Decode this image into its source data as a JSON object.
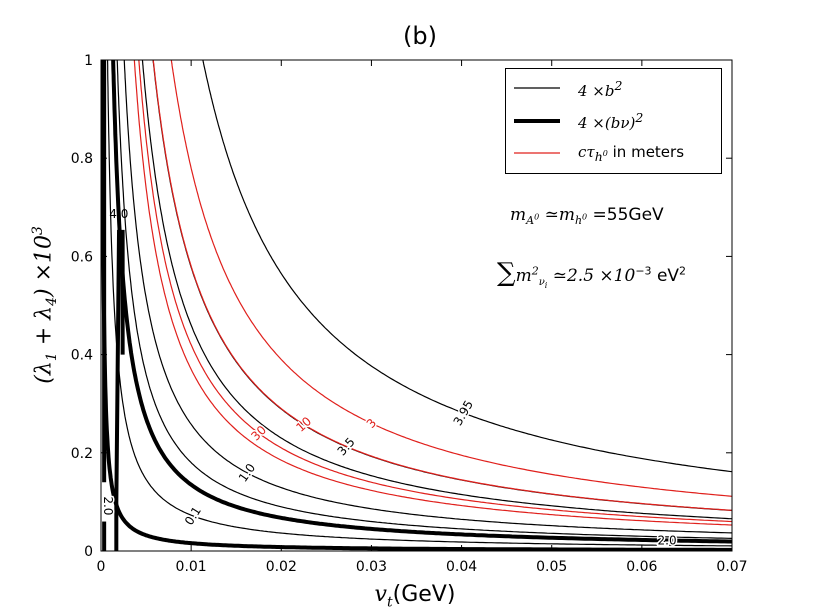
{
  "chart_data": {
    "type": "line",
    "title": "(b)",
    "xlabel": "v_t (GeV)",
    "ylabel": "(λ1 + λ4) ×10^3",
    "xlim": [
      0,
      0.07
    ],
    "ylim": [
      0,
      1
    ],
    "x_ticks": [
      "0",
      "0.01",
      "0.02",
      "0.03",
      "0.04",
      "0.05",
      "0.06",
      "0.07"
    ],
    "x_tick_values": [
      0,
      0.01,
      0.02,
      0.03,
      0.04,
      0.05,
      0.06,
      0.07
    ],
    "y_ticks": [
      "0",
      "0.2",
      "0.4",
      "0.6",
      "0.8",
      "1"
    ],
    "y_tick_values": [
      0,
      0.2,
      0.4,
      0.6,
      0.8,
      1
    ],
    "legend": {
      "position": "top-right",
      "entries": [
        {
          "label": "4 ×b²",
          "style": "thin-black"
        },
        {
          "label": "4 ×(bν)²",
          "style": "thick-black"
        },
        {
          "label": "cτ_h0 in meters",
          "style": "red"
        }
      ],
      "legend_red_suffix": "in meters"
    },
    "annotations": {
      "mass_line": "m_A0 ≃ m_h0 = 55GeV",
      "mass_value": "=55GeV",
      "neutrino_line": "∑ m²_νi ≃ 2.5 ×10⁻³ eV²",
      "neutrino_value": "≃2.5 ×10",
      "neutrino_exp": "−3",
      "neutrino_unit": "eV"
    },
    "series": [
      {
        "name": "4 ×b² = 0.1",
        "style": "thin-black",
        "label": "0.1",
        "k": 0.00073
      },
      {
        "name": "4 ×b² = 1.0",
        "style": "thin-black",
        "label": "1.0",
        "k": 0.00258
      },
      {
        "name": "4 ×b² = 3.5",
        "style": "thin-black",
        "label": "3.5",
        "k": 0.00578
      },
      {
        "name": "4 ×b² = 3.95",
        "style": "thin-black",
        "label": "3.95",
        "k": 0.0113
      },
      {
        "name": "4 ×b² extra",
        "style": "thin-black",
        "label": "",
        "k": 0.0018
      },
      {
        "name": "4 ×b² extra2",
        "style": "thin-black",
        "label": "",
        "k": 0.0046
      },
      {
        "name": "cτ = 3",
        "style": "red",
        "label": "3",
        "k": 0.0078
      },
      {
        "name": "cτ = 10",
        "style": "red",
        "label": "10",
        "k": 0.0058
      },
      {
        "name": "cτ = 30",
        "style": "red",
        "label": "30",
        "k": 0.0042
      },
      {
        "name": "cτ extra",
        "style": "red",
        "label": "",
        "k": 0.0037
      },
      {
        "name": "4 ×(bν)² = 2.0 outer",
        "style": "thick-black",
        "label": "2.0",
        "k": 0.00135
      },
      {
        "name": "4 ×(bν)² = 2.0 inner",
        "style": "thick-black",
        "label": "",
        "k": 0.00016
      }
    ],
    "peak": {
      "label": "4.0",
      "x": 0.0022,
      "y": 0.65
    },
    "vertical_label": "2.0"
  }
}
